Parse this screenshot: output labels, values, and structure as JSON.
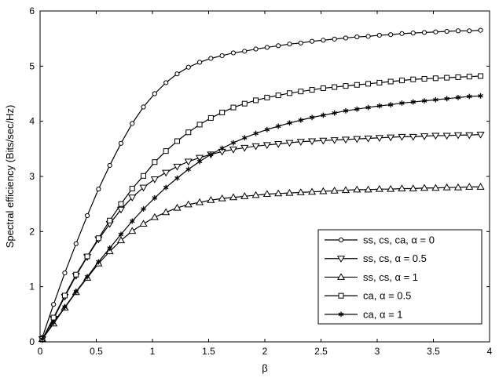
{
  "chart_data": {
    "type": "line",
    "xlabel": "β",
    "ylabel": "Spectral efficiency (Bits/sec/Hz)",
    "xlim": [
      0,
      4
    ],
    "ylim": [
      0,
      6
    ],
    "xticks": [
      "0",
      "0.5",
      "1",
      "1.5",
      "2",
      "2.5",
      "3",
      "3.5",
      "4"
    ],
    "yticks": [
      "0",
      "1",
      "2",
      "3",
      "4",
      "5",
      "6"
    ],
    "grid": false,
    "legend_position": "bottom-right",
    "x": [
      0.02,
      0.12,
      0.22,
      0.32,
      0.42,
      0.52,
      0.62,
      0.72,
      0.82,
      0.92,
      1.02,
      1.12,
      1.22,
      1.32,
      1.42,
      1.52,
      1.62,
      1.72,
      1.82,
      1.92,
      2.02,
      2.12,
      2.22,
      2.32,
      2.42,
      2.52,
      2.62,
      2.72,
      2.82,
      2.92,
      3.02,
      3.12,
      3.22,
      3.32,
      3.42,
      3.52,
      3.62,
      3.72,
      3.82,
      3.92
    ],
    "series": [
      {
        "name": "ss, cs, ca, α = 0",
        "marker": "circle",
        "values": [
          0.08,
          0.68,
          1.25,
          1.78,
          2.29,
          2.77,
          3.2,
          3.6,
          3.96,
          4.26,
          4.5,
          4.7,
          4.86,
          4.98,
          5.07,
          5.14,
          5.19,
          5.24,
          5.27,
          5.31,
          5.34,
          5.37,
          5.4,
          5.42,
          5.45,
          5.47,
          5.49,
          5.51,
          5.53,
          5.54,
          5.56,
          5.57,
          5.59,
          5.6,
          5.61,
          5.62,
          5.63,
          5.64,
          5.64,
          5.65
        ]
      },
      {
        "name": "ss, cs, α = 0.5",
        "marker": "triangle-down",
        "values": [
          0.05,
          0.42,
          0.82,
          1.2,
          1.54,
          1.86,
          2.14,
          2.4,
          2.62,
          2.8,
          2.95,
          3.07,
          3.18,
          3.27,
          3.34,
          3.4,
          3.45,
          3.49,
          3.52,
          3.55,
          3.57,
          3.59,
          3.61,
          3.63,
          3.64,
          3.65,
          3.66,
          3.67,
          3.68,
          3.69,
          3.7,
          3.71,
          3.72,
          3.72,
          3.73,
          3.74,
          3.74,
          3.75,
          3.75,
          3.76
        ]
      },
      {
        "name": "ss, cs, α = 1",
        "marker": "triangle-up",
        "values": [
          0.05,
          0.33,
          0.62,
          0.9,
          1.16,
          1.42,
          1.64,
          1.84,
          2.01,
          2.14,
          2.26,
          2.35,
          2.43,
          2.49,
          2.53,
          2.57,
          2.6,
          2.62,
          2.64,
          2.66,
          2.68,
          2.69,
          2.7,
          2.71,
          2.72,
          2.73,
          2.74,
          2.75,
          2.76,
          2.76,
          2.77,
          2.77,
          2.78,
          2.78,
          2.79,
          2.79,
          2.8,
          2.8,
          2.81,
          2.81
        ]
      },
      {
        "name": "ca, α = 0.5",
        "marker": "square",
        "values": [
          0.05,
          0.44,
          0.84,
          1.22,
          1.55,
          1.88,
          2.2,
          2.5,
          2.78,
          3.01,
          3.26,
          3.46,
          3.64,
          3.8,
          3.94,
          4.06,
          4.16,
          4.25,
          4.32,
          4.38,
          4.43,
          4.47,
          4.51,
          4.54,
          4.57,
          4.6,
          4.62,
          4.64,
          4.66,
          4.68,
          4.7,
          4.72,
          4.74,
          4.76,
          4.77,
          4.78,
          4.79,
          4.8,
          4.81,
          4.82
        ]
      },
      {
        "name": "ca, α = 1",
        "marker": "star",
        "values": [
          0.05,
          0.35,
          0.63,
          0.91,
          1.18,
          1.45,
          1.7,
          1.95,
          2.19,
          2.41,
          2.61,
          2.8,
          2.97,
          3.13,
          3.27,
          3.4,
          3.51,
          3.61,
          3.7,
          3.78,
          3.85,
          3.91,
          3.97,
          4.02,
          4.07,
          4.11,
          4.15,
          4.19,
          4.22,
          4.25,
          4.28,
          4.3,
          4.33,
          4.35,
          4.37,
          4.39,
          4.41,
          4.43,
          4.45,
          4.46
        ]
      }
    ]
  },
  "colors": {
    "line": "#000000",
    "marker_fill": "#ffffff",
    "background": "#ffffff"
  }
}
